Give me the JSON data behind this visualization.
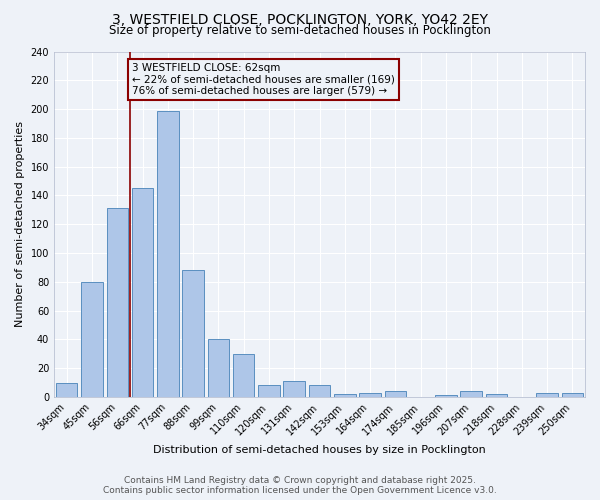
{
  "title": "3, WESTFIELD CLOSE, POCKLINGTON, YORK, YO42 2EY",
  "subtitle": "Size of property relative to semi-detached houses in Pocklington",
  "xlabel": "Distribution of semi-detached houses by size in Pocklington",
  "ylabel": "Number of semi-detached properties",
  "categories": [
    "34sqm",
    "45sqm",
    "56sqm",
    "66sqm",
    "77sqm",
    "88sqm",
    "99sqm",
    "110sqm",
    "120sqm",
    "131sqm",
    "142sqm",
    "153sqm",
    "164sqm",
    "174sqm",
    "185sqm",
    "196sqm",
    "207sqm",
    "218sqm",
    "228sqm",
    "239sqm",
    "250sqm"
  ],
  "values": [
    10,
    80,
    131,
    145,
    199,
    88,
    40,
    30,
    8,
    11,
    8,
    2,
    3,
    4,
    0,
    1,
    4,
    2,
    0,
    3,
    3
  ],
  "bar_color": "#aec6e8",
  "bar_edge_color": "#5a8fc0",
  "vline_color": "#8b0000",
  "annotation_title": "3 WESTFIELD CLOSE: 62sqm",
  "annotation_line1": "← 22% of semi-detached houses are smaller (169)",
  "annotation_line2": "76% of semi-detached houses are larger (579) →",
  "annotation_box_color": "#8b0000",
  "ylim": [
    0,
    240
  ],
  "yticks": [
    0,
    20,
    40,
    60,
    80,
    100,
    120,
    140,
    160,
    180,
    200,
    220,
    240
  ],
  "footer1": "Contains HM Land Registry data © Crown copyright and database right 2025.",
  "footer2": "Contains public sector information licensed under the Open Government Licence v3.0.",
  "bg_color": "#eef2f8",
  "grid_color": "#ffffff",
  "title_fontsize": 10,
  "subtitle_fontsize": 8.5,
  "axis_label_fontsize": 8,
  "tick_fontsize": 7,
  "annotation_fontsize": 7.5,
  "footer_fontsize": 6.5
}
